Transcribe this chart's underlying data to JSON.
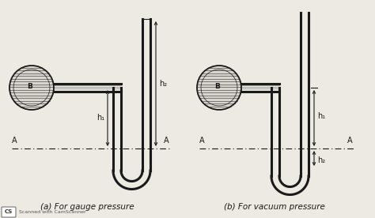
{
  "bg_color": "#ede9e3",
  "line_color": "#1a1a1a",
  "label_a": "A",
  "label_b": "B",
  "label_h1_gauge": "h₁",
  "label_h2_gauge": "h₂",
  "label_h1_vacuum": "h₁",
  "label_h2_vacuum": "h₂",
  "caption_a": "(a) For gauge pressure",
  "caption_b": "(b) For vacuum pressure",
  "watermark": "Scanned with CamScanner"
}
